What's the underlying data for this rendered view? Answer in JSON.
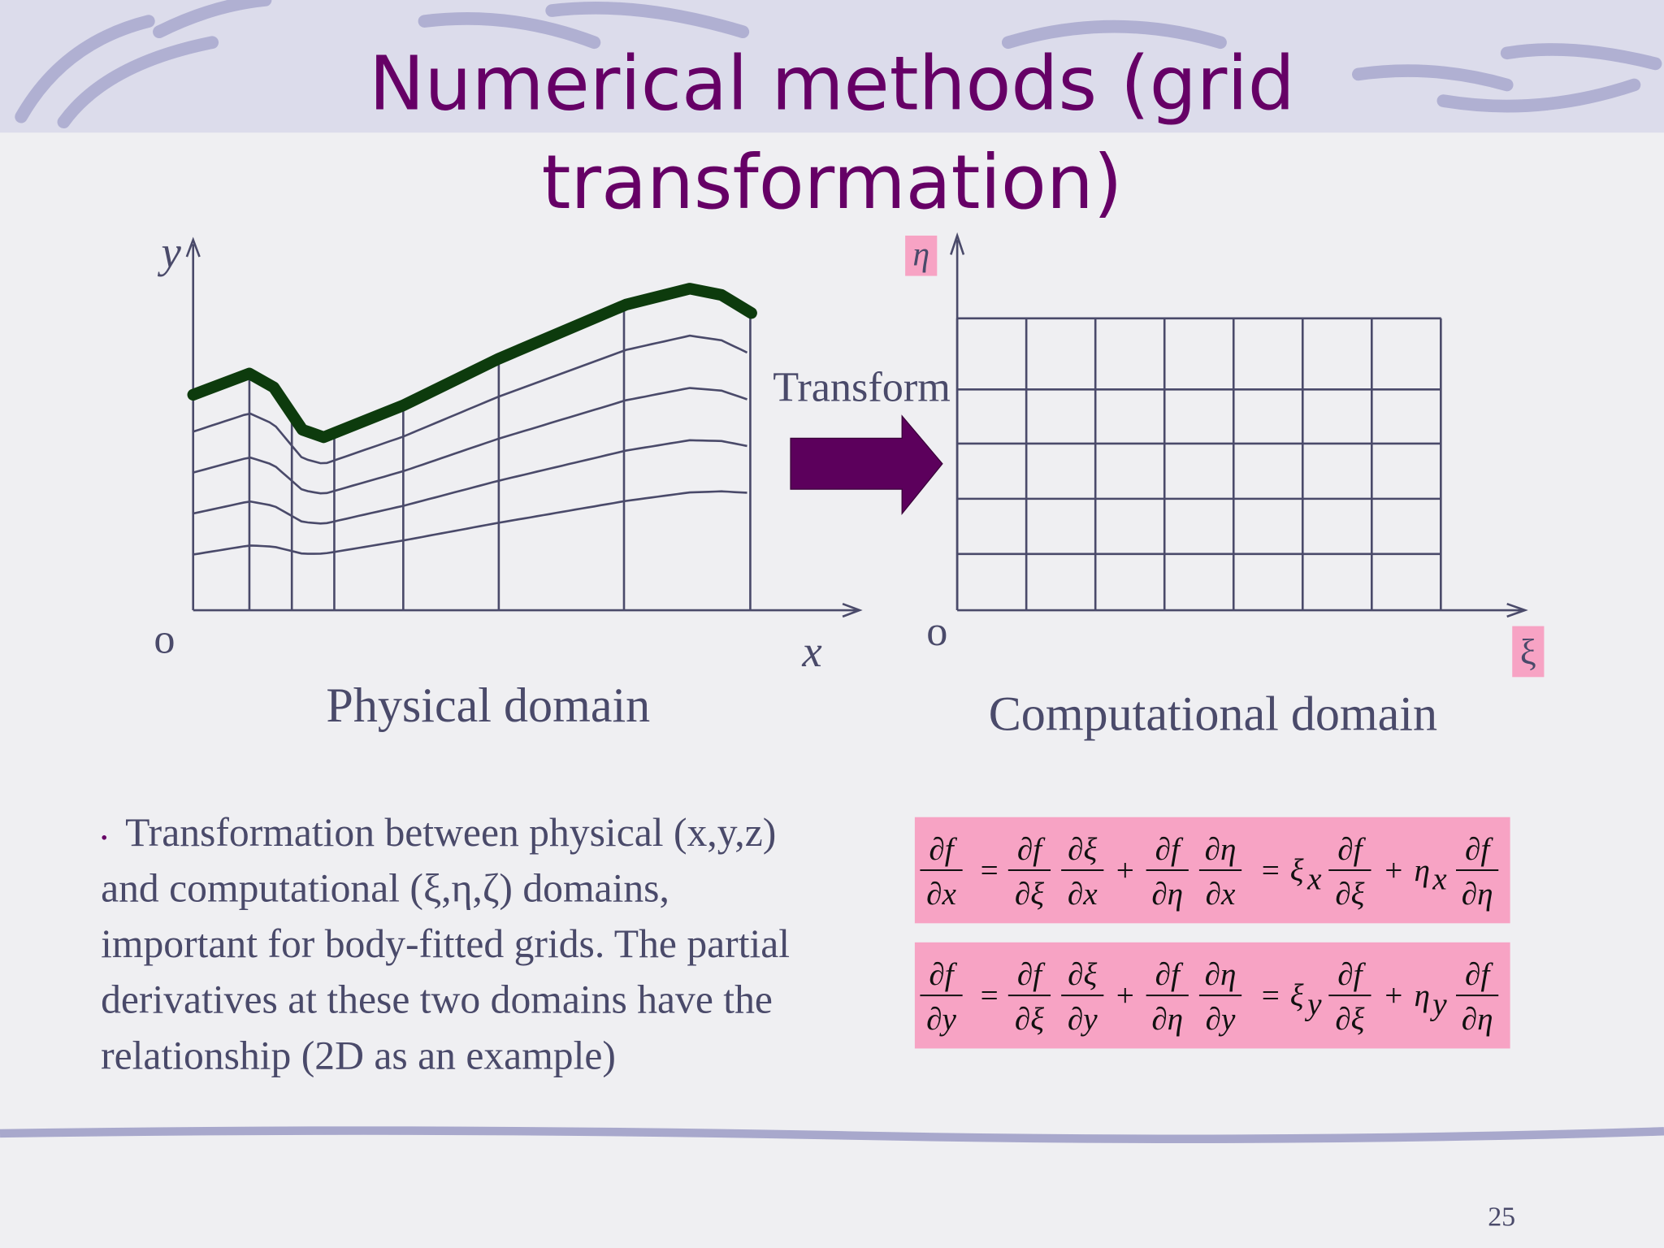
{
  "header": {
    "title_lines": [
      "Numerical methods (grid",
      "transformation)"
    ]
  },
  "physical": {
    "y_label": "y",
    "origin": "o",
    "x_label": "x",
    "caption": "Physical domain"
  },
  "transform_label": "Transform",
  "computational": {
    "y_label": "η",
    "origin": "o",
    "x_label": "ξ",
    "caption": "Computational domain"
  },
  "bullet": {
    "marker": "•",
    "lines": [
      "Transformation between physical (x,y,z)",
      "and computational (ξ,η,ζ) domains,",
      "important for body-fitted grids. The partial",
      "derivatives at these two domains have the",
      "relationship (2D as an example)"
    ]
  },
  "equations": [
    [
      {
        "num": "∂f",
        "den": "∂x"
      },
      {
        "text": "="
      },
      {
        "num": "∂f",
        "den": "∂ξ"
      },
      {
        "num": "∂ξ",
        "den": "∂x"
      },
      {
        "text": "+"
      },
      {
        "num": "∂f",
        "den": "∂η"
      },
      {
        "num": "∂η",
        "den": "∂x"
      },
      {
        "text": "="
      },
      {
        "text": "ξ",
        "sub": "x"
      },
      {
        "num": "∂f",
        "den": "∂ξ"
      },
      {
        "text": "+"
      },
      {
        "text": "η",
        "sub": "x"
      },
      {
        "num": "∂f",
        "den": "∂η"
      }
    ],
    [
      {
        "num": "∂f",
        "den": "∂y"
      },
      {
        "text": "="
      },
      {
        "num": "∂f",
        "den": "∂ξ"
      },
      {
        "num": "∂ξ",
        "den": "∂y"
      },
      {
        "text": "+"
      },
      {
        "num": "∂f",
        "den": "∂η"
      },
      {
        "num": "∂η",
        "den": "∂y"
      },
      {
        "text": "="
      },
      {
        "text": "ξ",
        "sub": "y"
      },
      {
        "num": "∂f",
        "den": "∂ξ"
      },
      {
        "text": "+"
      },
      {
        "text": "η",
        "sub": "y"
      },
      {
        "num": "∂f",
        "den": "∂η"
      }
    ]
  ],
  "page_number": "25"
}
